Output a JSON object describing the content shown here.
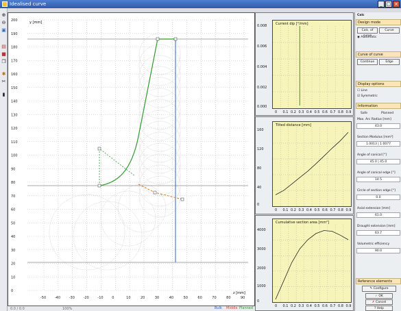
{
  "window": {
    "title": "Idealised curve",
    "min": "_",
    "max": "□",
    "close": "×"
  },
  "toolbar": [
    "zoom-in",
    "zoom-out",
    "fit",
    "print",
    "save",
    "copy",
    "settings",
    "cut",
    "drill",
    "well"
  ],
  "main_plot": {
    "ylabel": "y [mm]",
    "xlabel": "z [mm]",
    "y_ticks": [
      "200",
      "190",
      "180",
      "170",
      "160",
      "150",
      "140",
      "130",
      "120",
      "110",
      "100",
      "90",
      "80",
      "70",
      "60",
      "50",
      "40",
      "30",
      "20",
      "10",
      "0"
    ],
    "x_ticks": [
      "-50",
      "-40",
      "-30",
      "-20",
      "-10",
      "0",
      "10",
      "20",
      "30",
      "40",
      "50",
      "60",
      "70",
      "80",
      "90"
    ],
    "status_left": "0.0 / 0.0",
    "status_mid": "100%",
    "legend": [
      {
        "label": "Bulk",
        "color": "#2d64c8"
      },
      {
        "label": "Middle",
        "color": "#d04a3a"
      },
      {
        "label": "Planned",
        "color": "#2f9a2f"
      }
    ]
  },
  "chart_data": [
    {
      "type": "line",
      "title": "Current dip [°/mm]",
      "x": [
        0,
        0.1,
        0.2,
        0.3,
        0.4,
        0.5,
        0.6,
        0.7,
        0.8,
        0.9
      ],
      "y_ticks": [
        "0.008",
        "0.006",
        "0.004",
        "0.002",
        "0.000"
      ],
      "spike_at": 0.3
    },
    {
      "type": "line",
      "title": "Tilted distance [mm]",
      "x": [
        0,
        0.1,
        0.2,
        0.3,
        0.4,
        0.5,
        0.6,
        0.7,
        0.8,
        0.9
      ],
      "values": [
        20,
        30,
        45,
        60,
        75,
        92,
        110,
        128,
        145,
        165
      ],
      "y_ticks": [
        "160",
        "120",
        "80",
        "40",
        "0"
      ]
    },
    {
      "type": "line",
      "title": "Cumulative section area [mm²]",
      "x": [
        0,
        0.1,
        0.2,
        0.3,
        0.4,
        0.5,
        0.6,
        0.7,
        0.8,
        0.9
      ],
      "values": [
        0,
        1200,
        2400,
        3300,
        3900,
        4300,
        4500,
        4450,
        4200,
        3900
      ],
      "y_ticks": [
        "4000",
        "3000",
        "2000",
        "1000",
        "0"
      ]
    }
  ],
  "sidebar": {
    "title": "Calc",
    "design": {
      "header": "Design mode",
      "buttons": [
        "Calc. of curve",
        "Curve"
      ],
      "radio_label": "Automatic"
    },
    "curve": {
      "header": "Curve of curve",
      "buttons": [
        "Continue",
        "Edge"
      ]
    },
    "display": {
      "header": "Display options",
      "opt1": "Line",
      "opt2": "Symmetric"
    },
    "info": {
      "header": "Information",
      "col1": "Safe",
      "col2": "Planned",
      "rows": [
        {
          "label": "Max. Arc Radius [mm]",
          "value": "43.0"
        },
        {
          "label": "Section Modulus [mm³]",
          "value": "1.0013 | 1.0077"
        },
        {
          "label": "Angle of conical [°]",
          "value": "45.0 | 45.0"
        },
        {
          "label": "Angle of conical edge [°]",
          "value": "14.5"
        },
        {
          "label": "Circle of section edge [°]",
          "value": "0.0"
        },
        {
          "label": "Axial extension [mm]",
          "value": "61.0"
        },
        {
          "label": "Draught extension [mm]",
          "value": "63.7"
        },
        {
          "label": "Volumetric efficiency",
          "value": "90.0"
        }
      ]
    },
    "reference": {
      "header": "Reference elements",
      "configure": "Configure"
    },
    "actions": {
      "ok": "OK",
      "cancel": "Cancel",
      "help": "Help"
    }
  }
}
